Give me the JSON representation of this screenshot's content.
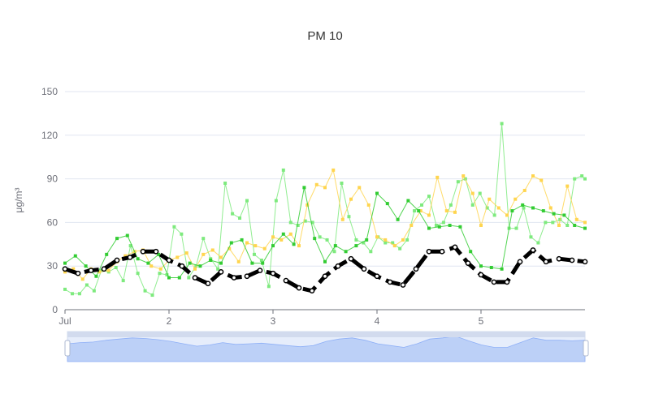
{
  "chart_data": {
    "type": "line",
    "title": "PM 10",
    "ylabel": "μg/m³",
    "ylim": [
      0,
      150
    ],
    "yticks": [
      0,
      30,
      60,
      90,
      120,
      150
    ],
    "xlim": [
      0,
      5
    ],
    "x_tick_labels": [
      "Jul",
      "2",
      "3",
      "4",
      "5"
    ],
    "grid": true,
    "legend": "none",
    "colors": {
      "thick": "#000000",
      "yellow": "#ffd54f",
      "darkgreen": "#33cc33",
      "lightgreen": "#7eea7e",
      "dz_fill": "#aec6f6",
      "dz_back": "#e6edfb"
    },
    "series": [
      {
        "style": "thick",
        "x": [
          0.0,
          0.125,
          0.25,
          0.375,
          0.5,
          0.625,
          0.75,
          0.875,
          1.0,
          1.125,
          1.25,
          1.375,
          1.5,
          1.625,
          1.75,
          1.875,
          2.0,
          2.125,
          2.25,
          2.375,
          2.5,
          2.625,
          2.75,
          2.875,
          3.0,
          3.125,
          3.25,
          3.375,
          3.5,
          3.625,
          3.75,
          3.875,
          4.0,
          4.125,
          4.25,
          4.375,
          4.5,
          4.625,
          4.75,
          4.875,
          5.0
        ],
        "values": [
          28,
          25,
          27,
          28,
          34,
          36,
          40,
          40,
          34,
          30,
          22,
          18,
          26,
          22,
          23,
          27,
          25,
          20,
          15,
          13,
          23,
          30,
          35,
          28,
          23,
          19,
          17,
          28,
          40,
          40,
          43,
          32,
          24,
          19,
          19,
          33,
          41,
          33,
          35,
          34,
          33
        ]
      },
      {
        "style": "yellow",
        "x": [
          0.0,
          0.08,
          0.17,
          0.25,
          0.33,
          0.42,
          0.5,
          0.58,
          0.67,
          0.75,
          0.83,
          0.92,
          1.0,
          1.08,
          1.17,
          1.25,
          1.33,
          1.42,
          1.5,
          1.58,
          1.67,
          1.75,
          1.83,
          1.92,
          2.0,
          2.08,
          2.17,
          2.25,
          2.33,
          2.42,
          2.5,
          2.58,
          2.67,
          2.75,
          2.83,
          2.92,
          3.0,
          3.08,
          3.17,
          3.25,
          3.33,
          3.42,
          3.5,
          3.58,
          3.67,
          3.75,
          3.83,
          3.92,
          4.0,
          4.08,
          4.17,
          4.25,
          4.33,
          4.42,
          4.5,
          4.58,
          4.67,
          4.75,
          4.83,
          4.92,
          5.0
        ],
        "values": [
          26,
          28,
          21,
          28,
          26,
          27,
          33,
          37,
          40,
          41,
          30,
          28,
          34,
          36,
          39,
          28,
          38,
          41,
          36,
          42,
          33,
          46,
          44,
          42,
          50,
          48,
          52,
          44,
          72,
          86,
          84,
          96,
          62,
          76,
          84,
          72,
          50,
          48,
          44,
          48,
          58,
          68,
          65,
          91,
          68,
          67,
          92,
          80,
          58,
          76,
          70,
          65,
          76,
          82,
          92,
          89,
          70,
          58,
          85,
          62,
          60
        ]
      },
      {
        "style": "darkgreen",
        "x": [
          0.0,
          0.1,
          0.2,
          0.3,
          0.4,
          0.5,
          0.6,
          0.7,
          0.8,
          0.9,
          1.0,
          1.1,
          1.2,
          1.3,
          1.4,
          1.5,
          1.6,
          1.7,
          1.8,
          1.9,
          2.0,
          2.1,
          2.2,
          2.3,
          2.4,
          2.5,
          2.6,
          2.7,
          2.8,
          2.9,
          3.0,
          3.1,
          3.2,
          3.3,
          3.4,
          3.5,
          3.6,
          3.7,
          3.8,
          3.9,
          4.0,
          4.1,
          4.2,
          4.3,
          4.4,
          4.5,
          4.6,
          4.7,
          4.8,
          4.9,
          5.0
        ],
        "values": [
          32,
          37,
          30,
          23,
          38,
          49,
          51,
          35,
          32,
          38,
          22,
          22,
          32,
          30,
          34,
          32,
          46,
          48,
          32,
          32,
          44,
          52,
          45,
          84,
          49,
          33,
          44,
          40,
          44,
          48,
          80,
          73,
          62,
          75,
          68,
          56,
          57,
          58,
          57,
          40,
          30,
          29,
          28,
          68,
          72,
          70,
          68,
          66,
          65,
          58,
          56
        ]
      },
      {
        "style": "lightgreen",
        "x": [
          0.0,
          0.07,
          0.14,
          0.21,
          0.28,
          0.35,
          0.42,
          0.49,
          0.56,
          0.63,
          0.7,
          0.77,
          0.84,
          0.91,
          0.98,
          1.05,
          1.12,
          1.19,
          1.26,
          1.33,
          1.4,
          1.47,
          1.54,
          1.61,
          1.68,
          1.75,
          1.82,
          1.89,
          1.96,
          2.03,
          2.1,
          2.17,
          2.24,
          2.31,
          2.38,
          2.45,
          2.52,
          2.59,
          2.66,
          2.73,
          2.8,
          2.87,
          2.94,
          3.01,
          3.08,
          3.15,
          3.22,
          3.29,
          3.36,
          3.43,
          3.5,
          3.57,
          3.64,
          3.71,
          3.78,
          3.85,
          3.92,
          3.99,
          4.06,
          4.13,
          4.2,
          4.27,
          4.34,
          4.41,
          4.48,
          4.55,
          4.62,
          4.69,
          4.76,
          4.83,
          4.9,
          4.97,
          5.0
        ],
        "values": [
          14,
          11,
          11,
          17,
          13,
          27,
          26,
          29,
          20,
          44,
          25,
          13,
          10,
          25,
          24,
          57,
          52,
          22,
          30,
          49,
          35,
          28,
          87,
          66,
          63,
          75,
          38,
          34,
          16,
          75,
          96,
          60,
          58,
          61,
          60,
          50,
          48,
          40,
          87,
          64,
          48,
          46,
          40,
          50,
          46,
          46,
          42,
          48,
          68,
          72,
          78,
          58,
          60,
          72,
          88,
          90,
          72,
          80,
          70,
          65,
          128,
          56,
          56,
          70,
          50,
          46,
          60,
          60,
          62,
          58,
          90,
          92,
          90
        ]
      }
    ],
    "datazoom": {
      "start_label": "Jul",
      "profile": [
        30,
        32,
        33,
        36,
        38,
        40,
        39,
        37,
        34,
        30,
        26,
        28,
        32,
        29,
        30,
        31,
        29,
        27,
        25,
        27,
        34,
        38,
        40,
        36,
        30,
        27,
        24,
        30,
        38,
        40,
        43,
        35,
        28,
        24,
        24,
        32,
        40,
        36,
        36,
        35,
        36
      ]
    }
  }
}
